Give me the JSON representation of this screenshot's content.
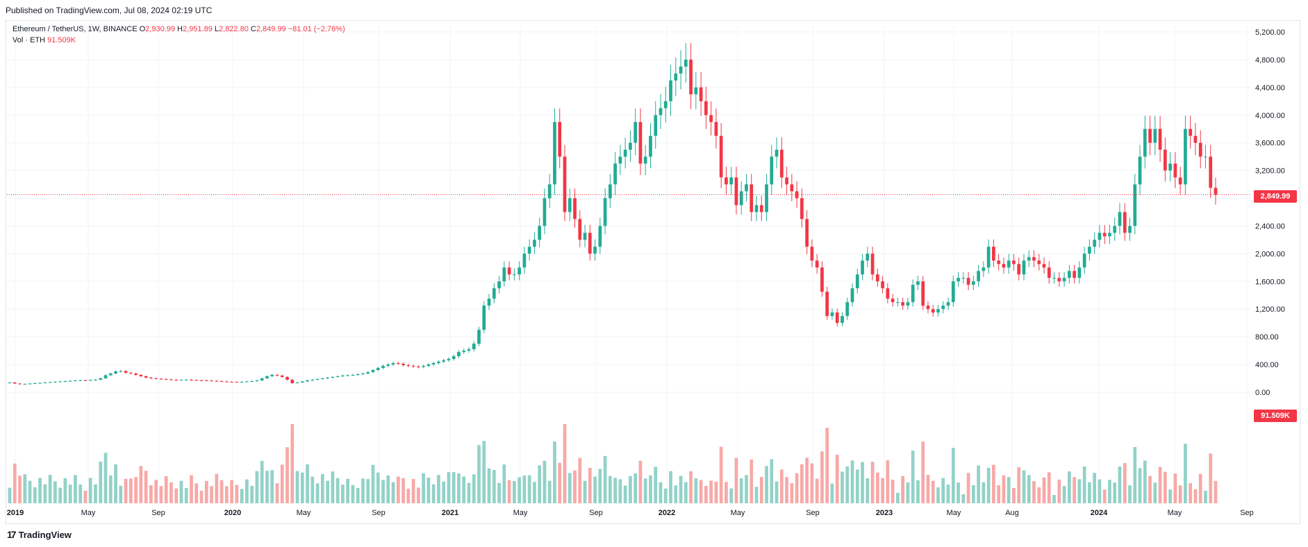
{
  "header": {
    "published": "Published on TradingView.com, Jul 08, 2024 02:19 UTC"
  },
  "legend": {
    "symbol": "Ethereum / TetherUS, 1W, BINANCE",
    "o_label": "O",
    "o_value": "2,930.99",
    "h_label": "H",
    "h_value": "2,951.89",
    "l_label": "L",
    "l_value": "2,822.80",
    "c_label": "C",
    "c_value": "2,849.99",
    "change": "−81.01 (−2.76%)",
    "vol_label": "Vol · ETH",
    "vol_value": "91.509K"
  },
  "price_tag": "2,849.99",
  "volume_tag": "91.509K",
  "brand": "TradingView",
  "colors": {
    "up": "#22ab94",
    "down": "#f23645",
    "up_volume": "#92d2c8",
    "down_volume": "#f7a9a7",
    "grid": "#f0f3fa"
  },
  "chart_data": {
    "type": "candlestick",
    "symbol": "ETHUSDT",
    "timeframe": "1W",
    "y_ticks": [
      "5,200.00",
      "4,800.00",
      "4,400.00",
      "4,000.00",
      "3,600.00",
      "3,200.00",
      "2,800.00",
      "2,400.00",
      "2,000.00",
      "1,600.00",
      "1,200.00",
      "800.00",
      "400.00",
      "0.00"
    ],
    "x_ticks": [
      "2019",
      "May",
      "Sep",
      "2020",
      "May",
      "Sep",
      "2021",
      "May",
      "Sep",
      "2022",
      "May",
      "Sep",
      "2023",
      "May",
      "Aug",
      "2024",
      "May",
      "Sep"
    ],
    "ylim": [
      0,
      5200
    ],
    "last_close": 2849.99,
    "last_volume_k": 91.509,
    "series_description": "Weekly closes (approximate)",
    "closes": [
      140,
      125,
      115,
      120,
      125,
      130,
      135,
      140,
      145,
      150,
      155,
      160,
      165,
      170,
      172,
      170,
      175,
      180,
      200,
      245,
      270,
      300,
      305,
      280,
      270,
      250,
      230,
      210,
      200,
      195,
      190,
      185,
      180,
      175,
      178,
      180,
      175,
      172,
      170,
      168,
      165,
      160,
      155,
      150,
      148,
      145,
      150,
      155,
      160,
      170,
      200,
      230,
      250,
      240,
      220,
      180,
      130,
      140,
      155,
      170,
      180,
      190,
      200,
      210,
      220,
      230,
      240,
      245,
      250,
      260,
      270,
      290,
      320,
      350,
      380,
      400,
      420,
      410,
      390,
      380,
      370,
      365,
      380,
      400,
      420,
      440,
      460,
      480,
      520,
      580,
      600,
      620,
      700,
      900,
      1250,
      1350,
      1500,
      1600,
      1800,
      1700,
      1700,
      1800,
      2000,
      2100,
      2200,
      2400,
      2800,
      3000,
      3900,
      3400,
      2600,
      2800,
      2500,
      2200,
      2300,
      2000,
      2100,
      2400,
      2800,
      3000,
      3300,
      3400,
      3500,
      3600,
      3900,
      3300,
      3400,
      3700,
      4000,
      4100,
      4200,
      4500,
      4600,
      4700,
      4800,
      4300,
      4400,
      4200,
      4000,
      3900,
      3700,
      3100,
      3000,
      3100,
      2700,
      2900,
      3000,
      2600,
      2700,
      2600,
      3000,
      3400,
      3500,
      3100,
      3000,
      2900,
      2800,
      2500,
      2100,
      1900,
      1800,
      1450,
      1100,
      1150,
      1000,
      1100,
      1300,
      1500,
      1700,
      1900,
      2000,
      1700,
      1600,
      1500,
      1350,
      1300,
      1300,
      1250,
      1300,
      1550,
      1600,
      1250,
      1200,
      1150,
      1200,
      1250,
      1300,
      1600,
      1650,
      1650,
      1550,
      1600,
      1750,
      1800,
      2100,
      1900,
      1850,
      1800,
      1900,
      1850,
      1700,
      1900,
      1950,
      1900,
      1850,
      1800,
      1650,
      1650,
      1600,
      1650,
      1750,
      1650,
      1800,
      2000,
      2100,
      2200,
      2300,
      2250,
      2300,
      2400,
      2600,
      2300,
      2400,
      3000,
      3400,
      3800,
      3600,
      3800,
      3500,
      3200,
      3300,
      3100,
      3000,
      3800,
      3700,
      3600,
      3400,
      3400,
      2950,
      2850
    ]
  }
}
